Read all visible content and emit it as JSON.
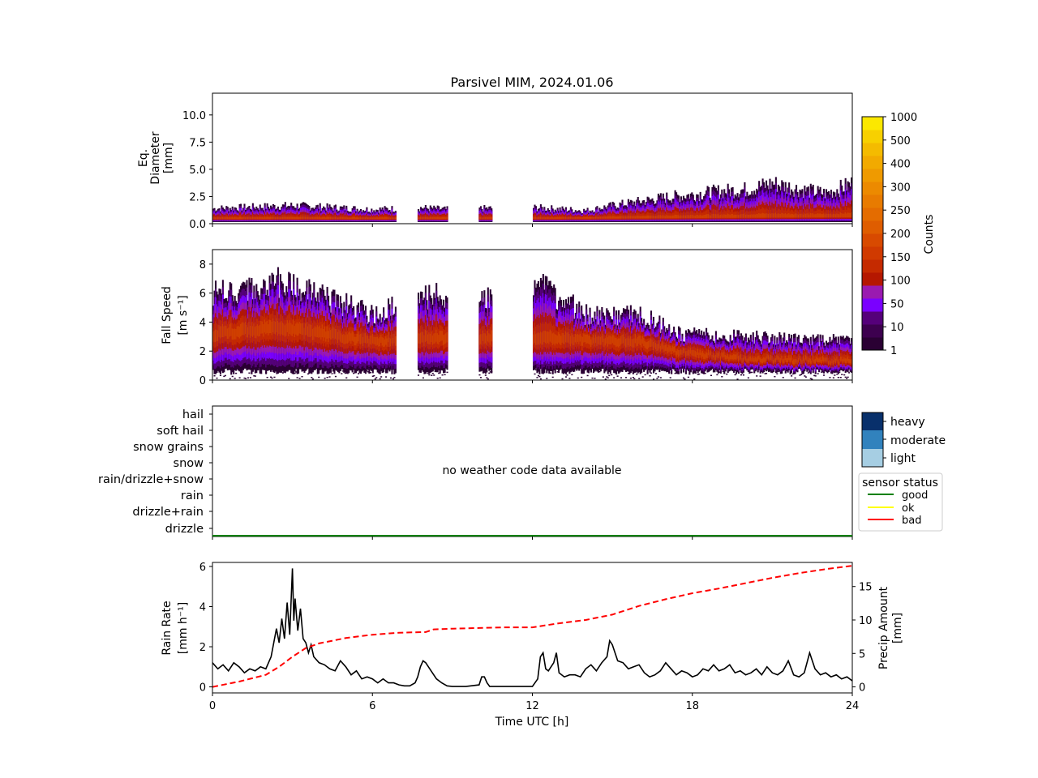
{
  "title": "Parsivel MIM, 2024.01.06",
  "colors": {
    "counts_levels": [
      "#2a0033",
      "#3d004f",
      "#55007a",
      "#7a00ff",
      "#9a1ab0",
      "#b51700",
      "#c52a00",
      "#d03a00",
      "#d84a00",
      "#df5d00",
      "#e46c00",
      "#e87b00",
      "#ec8a00",
      "#ef9a00",
      "#f2aa00",
      "#f4bb00",
      "#f7d000",
      "#fbe800"
    ],
    "wc_heavy": "#08306b",
    "wc_moderate": "#3182bd",
    "wc_light": "#a6cee3",
    "status_good": "#008000",
    "status_ok": "#ffff00",
    "status_bad": "#ff0000",
    "rain_rate": "#000000",
    "precip_amount": "#ff0000"
  },
  "colorbar": {
    "label": "Counts",
    "ticks": [
      "1",
      "10",
      "50",
      "100",
      "150",
      "200",
      "250",
      "300",
      "400",
      "500",
      "1000"
    ]
  },
  "chart_data": [
    {
      "type": "heatmap",
      "ylabel": [
        "Eq.",
        "Diameter",
        "[mm]"
      ],
      "xlim": [
        0,
        24
      ],
      "ylim": [
        0,
        12
      ],
      "yticks": [
        "0.0",
        "2.5",
        "5.0",
        "7.5",
        "10.0"
      ],
      "ytick_values": [
        0,
        2.5,
        5.0,
        7.5,
        10.0
      ],
      "data_gaps_hours": [
        [
          6.9,
          7.7
        ],
        [
          8.8,
          10.0
        ],
        [
          10.5,
          12.0
        ]
      ],
      "upper_envelope_mm": [
        [
          0,
          1.5
        ],
        [
          3,
          1.8
        ],
        [
          6,
          1.4
        ],
        [
          7.7,
          1.6
        ],
        [
          8.8,
          1.4
        ],
        [
          10,
          1.5
        ],
        [
          12,
          1.6
        ],
        [
          14,
          1.3
        ],
        [
          15,
          1.8
        ],
        [
          17,
          2.6
        ],
        [
          19,
          3.2
        ],
        [
          20,
          3.4
        ],
        [
          21,
          4.0
        ],
        [
          22,
          3.4
        ],
        [
          23,
          3.0
        ],
        [
          24,
          4.0
        ]
      ],
      "core_mm": [
        [
          0,
          0.5
        ],
        [
          12,
          0.5
        ],
        [
          24,
          0.7
        ]
      ]
    },
    {
      "type": "heatmap",
      "ylabel": [
        "Fall Speed",
        "[m s⁻¹]"
      ],
      "xlim": [
        0,
        24
      ],
      "ylim": [
        0,
        9
      ],
      "yticks": [
        "0",
        "2",
        "4",
        "6",
        "8"
      ],
      "ytick_values": [
        0,
        2,
        4,
        6,
        8
      ],
      "data_gaps_hours": [
        [
          6.9,
          7.7
        ],
        [
          8.8,
          10.0
        ],
        [
          10.5,
          12.0
        ]
      ],
      "core_speed": [
        [
          0,
          3.3
        ],
        [
          2.5,
          3.8
        ],
        [
          6,
          2.8
        ],
        [
          8,
          3.0
        ],
        [
          12,
          3.0
        ],
        [
          16,
          2.8
        ],
        [
          17.5,
          2.0
        ],
        [
          20,
          1.5
        ],
        [
          24,
          1.3
        ]
      ],
      "upper_envelope_speed": [
        [
          0,
          6.5
        ],
        [
          2.5,
          7.5
        ],
        [
          4,
          6.5
        ],
        [
          6,
          5.0
        ],
        [
          8,
          6.5
        ],
        [
          10,
          6.0
        ],
        [
          12,
          7.5
        ],
        [
          14,
          5.0
        ],
        [
          16,
          5.0
        ],
        [
          17.5,
          3.5
        ],
        [
          24,
          3.0
        ]
      ]
    },
    {
      "type": "table",
      "categories": [
        "hail",
        "soft hail",
        "snow grains",
        "snow",
        "rain/drizzle+snow",
        "rain",
        "drizzle+rain",
        "drizzle"
      ],
      "message": "no weather code data available",
      "intensity_legend": [
        "heavy",
        "moderate",
        "light"
      ],
      "status_legend_title": "sensor status",
      "status_legend": [
        "good",
        "ok",
        "bad"
      ],
      "status_series": [
        {
          "status": "good",
          "from": 0,
          "to": 24
        }
      ]
    },
    {
      "type": "line",
      "xlabel": "Time UTC [h]",
      "xticks": [
        "0",
        "6",
        "12",
        "18",
        "24"
      ],
      "xtick_values": [
        0,
        6,
        12,
        18,
        24
      ],
      "xlim": [
        0,
        24
      ],
      "ylabel": [
        "Rain Rate",
        "[mm h⁻¹]"
      ],
      "ylim": [
        -0.3,
        6.2
      ],
      "yticks": [
        "0",
        "2",
        "4",
        "6"
      ],
      "ytick_values": [
        0,
        2,
        4,
        6
      ],
      "ylabel_right": [
        "Precip Amount",
        "[mm]"
      ],
      "ylim_right": [
        -0.9,
        18.6
      ],
      "yticks_right": [
        "0",
        "5",
        "10",
        "15"
      ],
      "ytick_values_right": [
        0,
        5,
        10,
        15
      ],
      "series": [
        {
          "style": "solid",
          "x": [
            0,
            0.2,
            0.4,
            0.6,
            0.8,
            1.0,
            1.2,
            1.4,
            1.6,
            1.8,
            2.0,
            2.2,
            2.4,
            2.5,
            2.6,
            2.7,
            2.8,
            2.9,
            3.0,
            3.05,
            3.1,
            3.2,
            3.3,
            3.4,
            3.5,
            3.6,
            3.7,
            3.8,
            4.0,
            4.2,
            4.4,
            4.6,
            4.8,
            5.0,
            5.2,
            5.4,
            5.6,
            5.8,
            6.0,
            6.2,
            6.4,
            6.6,
            6.8,
            7.0,
            7.2,
            7.4,
            7.6,
            7.7,
            7.8,
            7.9,
            8.0,
            8.2,
            8.4,
            8.6,
            8.8,
            9.0,
            9.5,
            10.0,
            10.1,
            10.2,
            10.3,
            10.4,
            10.5,
            11.0,
            11.5,
            12.0,
            12.2,
            12.3,
            12.4,
            12.5,
            12.6,
            12.8,
            12.9,
            13.0,
            13.2,
            13.4,
            13.6,
            13.8,
            14.0,
            14.2,
            14.4,
            14.6,
            14.8,
            14.9,
            15.0,
            15.2,
            15.4,
            15.6,
            15.8,
            16.0,
            16.2,
            16.4,
            16.6,
            16.8,
            17.0,
            17.2,
            17.4,
            17.6,
            17.8,
            18.0,
            18.2,
            18.4,
            18.6,
            18.8,
            19.0,
            19.2,
            19.4,
            19.6,
            19.8,
            20.0,
            20.2,
            20.4,
            20.6,
            20.8,
            21.0,
            21.2,
            21.4,
            21.6,
            21.8,
            22.0,
            22.2,
            22.4,
            22.6,
            22.8,
            23.0,
            23.2,
            23.4,
            23.6,
            23.8,
            24.0
          ],
          "y": [
            1.2,
            0.9,
            1.1,
            0.8,
            1.2,
            1.0,
            0.7,
            0.9,
            0.8,
            1.0,
            0.9,
            1.5,
            2.9,
            2.2,
            3.4,
            2.4,
            4.2,
            2.6,
            5.9,
            3.3,
            4.4,
            2.8,
            3.9,
            2.4,
            2.2,
            1.7,
            2.1,
            1.5,
            1.2,
            1.1,
            0.9,
            0.8,
            1.3,
            1.0,
            0.6,
            0.8,
            0.4,
            0.5,
            0.4,
            0.2,
            0.4,
            0.2,
            0.2,
            0.1,
            0.05,
            0.05,
            0.2,
            0.5,
            1.0,
            1.3,
            1.2,
            0.8,
            0.4,
            0.2,
            0.05,
            0.02,
            0.02,
            0.1,
            0.5,
            0.5,
            0.2,
            0.02,
            0.02,
            0.02,
            0.02,
            0.02,
            0.4,
            1.5,
            1.7,
            0.9,
            0.8,
            1.2,
            1.7,
            0.7,
            0.5,
            0.6,
            0.6,
            0.5,
            0.9,
            1.1,
            0.8,
            1.2,
            1.5,
            2.3,
            2.1,
            1.3,
            1.2,
            0.9,
            1.0,
            1.1,
            0.7,
            0.5,
            0.6,
            0.8,
            1.2,
            0.9,
            0.6,
            0.8,
            0.7,
            0.5,
            0.6,
            0.9,
            0.8,
            1.1,
            0.8,
            0.9,
            1.1,
            0.7,
            0.8,
            0.6,
            0.7,
            0.9,
            0.6,
            1.0,
            0.7,
            0.6,
            0.8,
            1.3,
            0.6,
            0.5,
            0.7,
            1.7,
            0.9,
            0.6,
            0.7,
            0.5,
            0.6,
            0.4,
            0.5,
            0.3
          ]
        },
        {
          "style": "dashed",
          "axis": "right",
          "x": [
            0,
            1,
            2,
            2.5,
            3,
            3.5,
            4,
            5,
            6,
            7,
            8,
            8.3,
            9,
            10,
            11,
            12,
            13,
            14,
            15,
            16,
            17,
            18,
            19,
            20,
            21,
            22,
            23,
            24
          ],
          "y": [
            0,
            0.8,
            1.8,
            3.0,
            4.5,
            5.8,
            6.5,
            7.3,
            7.8,
            8.1,
            8.2,
            8.6,
            8.7,
            8.8,
            8.9,
            8.9,
            9.5,
            10.0,
            10.8,
            12.1,
            13.1,
            14.0,
            14.7,
            15.5,
            16.3,
            17.0,
            17.6,
            18.1
          ]
        }
      ]
    }
  ]
}
